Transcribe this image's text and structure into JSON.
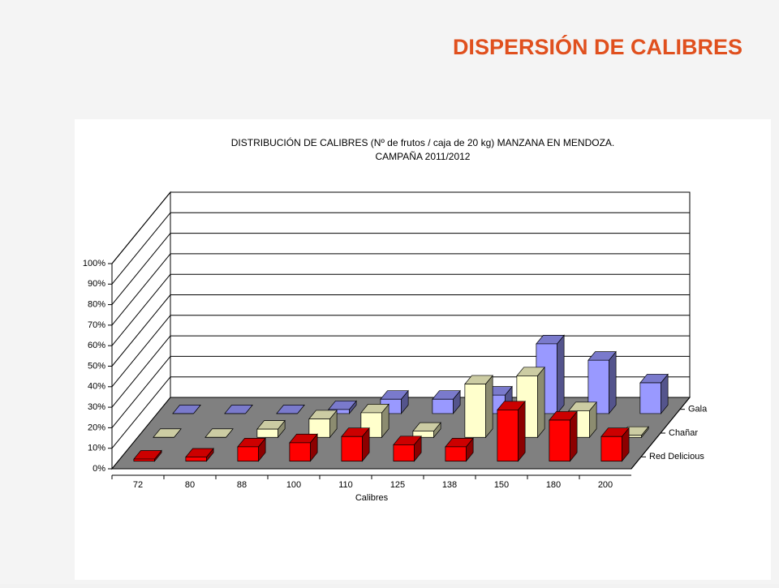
{
  "slide_title": "DISPERSIÓN DE CALIBRES",
  "chart_data": {
    "type": "bar3d",
    "title": "DISTRIBUCIÓN DE CALIBRES (Nº de frutos / caja de 20 kg)  MANZANA EN MENDOZA.",
    "subtitle": "CAMPAÑA 2011/2012",
    "x_label": "Calibres",
    "categories": [
      "72",
      "80",
      "88",
      "100",
      "110",
      "125",
      "138",
      "150",
      "180",
      "200"
    ],
    "series": [
      {
        "name": "Red Delicious",
        "color": "#ff0000",
        "values": [
          1,
          2,
          7,
          9,
          12,
          8,
          7,
          25,
          20,
          12
        ]
      },
      {
        "name": "Chañar",
        "color": "#ffffcc",
        "values": [
          0,
          0,
          4,
          9,
          12,
          3,
          26,
          30,
          13,
          1
        ]
      },
      {
        "name": "Gala",
        "color": "#9999ff",
        "values": [
          0,
          0,
          0,
          2,
          7,
          7,
          9,
          34,
          26,
          15
        ]
      }
    ],
    "ylim": [
      0,
      100
    ],
    "yticks": [
      {
        "value": 0,
        "label": "0%"
      },
      {
        "value": 10,
        "label": "10%"
      },
      {
        "value": 20,
        "label": "20%"
      },
      {
        "value": 30,
        "label": "30%"
      },
      {
        "value": 40,
        "label": "40%"
      },
      {
        "value": 50,
        "label": "50%"
      },
      {
        "value": 60,
        "label": "60%"
      },
      {
        "value": 70,
        "label": "70%"
      },
      {
        "value": 80,
        "label": "80%"
      },
      {
        "value": 90,
        "label": "90%"
      },
      {
        "value": 100,
        "label": "100%"
      }
    ],
    "grid": true
  }
}
